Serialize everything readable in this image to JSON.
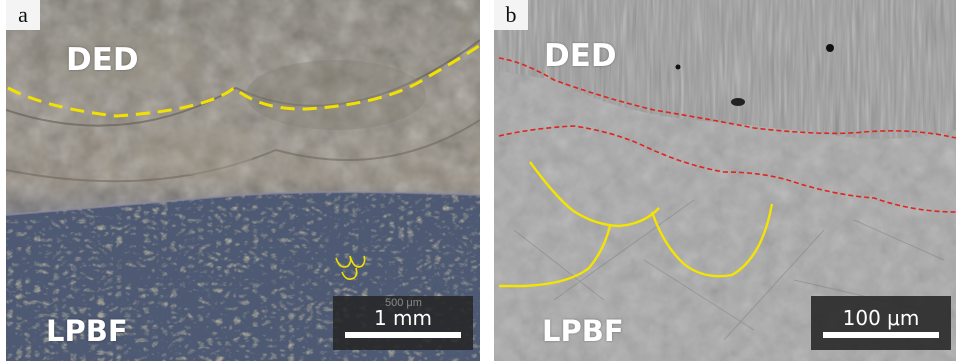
{
  "panels": [
    {
      "letter": "a",
      "top_label": "DED",
      "bottom_label": "LPBF",
      "scale_bar": "1 mm",
      "faint_scale_text": "500 μm",
      "colors": {
        "boundary": "#f2e100",
        "scale_box": "#262626",
        "ded_tone": "#8f877a",
        "lpbf_tone": "#56607a"
      }
    },
    {
      "letter": "b",
      "top_label": "DED",
      "bottom_label": "LPBF",
      "scale_bar": "100 μm",
      "colors": {
        "boundary": "#e1241e",
        "melt_pool": "#f5e400",
        "scale_box": "#262626",
        "background": "#a7a7a7"
      }
    }
  ]
}
